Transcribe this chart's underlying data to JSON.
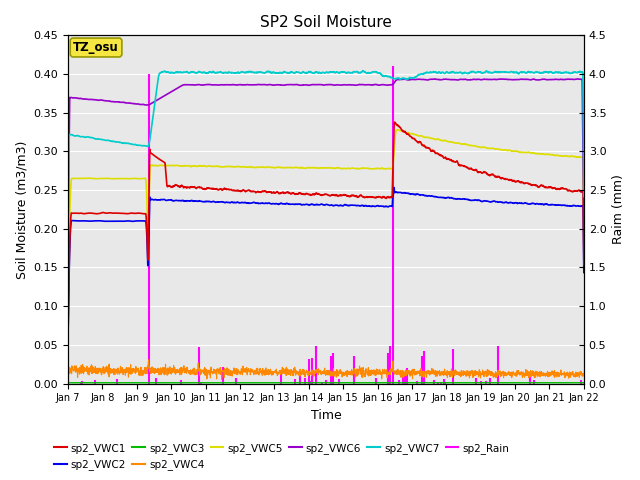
{
  "title": "SP2 Soil Moisture",
  "xlabel": "Time",
  "ylabel_left": "Soil Moisture (m3/m3)",
  "ylabel_right": "Raim (mm)",
  "ylim_left": [
    0,
    0.45
  ],
  "ylim_right": [
    0,
    4.5
  ],
  "yticks_left": [
    0.0,
    0.05,
    0.1,
    0.15,
    0.2,
    0.25,
    0.3,
    0.35,
    0.4,
    0.45
  ],
  "yticks_right": [
    0.0,
    0.5,
    1.0,
    1.5,
    2.0,
    2.5,
    3.0,
    3.5,
    4.0,
    4.5
  ],
  "bg_color": "#e8e8e8",
  "grid_color": "white",
  "annotation_text": "TZ_osu",
  "annotation_bg": "#f5e642",
  "annotation_border": "#c8a000",
  "xtick_labels": [
    "Jan 7",
    "Jan 8",
    "Jan 9",
    "Jan 10",
    "Jan 11",
    "Jan 12",
    "Jan 13",
    "Jan 14",
    "Jan 15",
    "Jan 16",
    "Jan 17",
    "Jan 18",
    "Jan 19",
    "Jan 20",
    "Jan 21",
    "Jan 22"
  ],
  "colors": {
    "sp2_VWC1": "#dd0000",
    "sp2_VWC2": "#0000ee",
    "sp2_VWC3": "#00bb00",
    "sp2_VWC4": "#ff8800",
    "sp2_VWC5": "#dddd00",
    "sp2_VWC6": "#9900cc",
    "sp2_VWC7": "#00cccc",
    "sp2_Rain": "#ff00ff"
  }
}
